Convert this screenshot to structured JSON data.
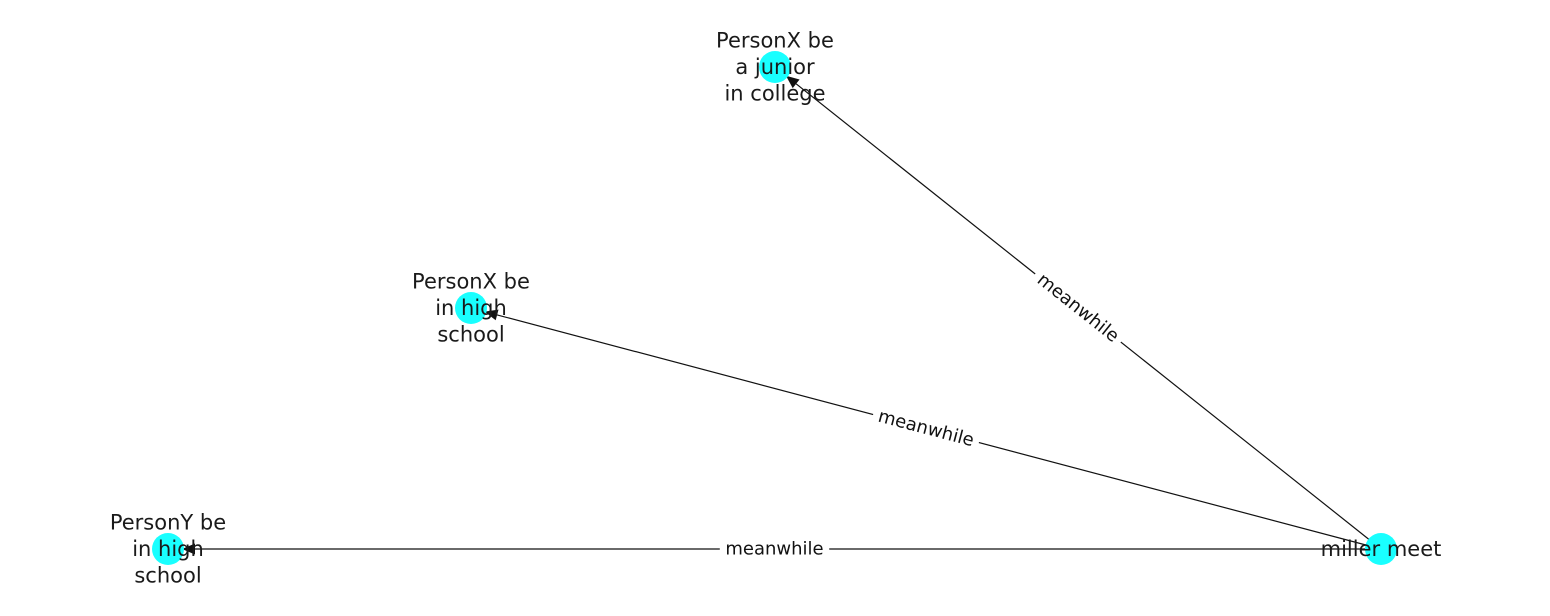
{
  "diagram": {
    "type": "directed-graph",
    "node_color": "#19ffff",
    "edge_color": "#111111",
    "nodes": [
      {
        "id": "n_junior",
        "lines": [
          "PersonX be",
          "a junior",
          "in college"
        ]
      },
      {
        "id": "n_x_high",
        "lines": [
          "PersonX be",
          "in high",
          "school"
        ]
      },
      {
        "id": "n_y_high",
        "lines": [
          "PersonY be",
          "in high",
          "school"
        ]
      },
      {
        "id": "n_miller",
        "lines": [
          "miller meet"
        ]
      }
    ],
    "edges": [
      {
        "source": "n_miller",
        "target": "n_junior",
        "label": "meanwhile"
      },
      {
        "source": "n_miller",
        "target": "n_x_high",
        "label": "meanwhile"
      },
      {
        "source": "n_miller",
        "target": "n_y_high",
        "label": "meanwhile"
      }
    ]
  }
}
